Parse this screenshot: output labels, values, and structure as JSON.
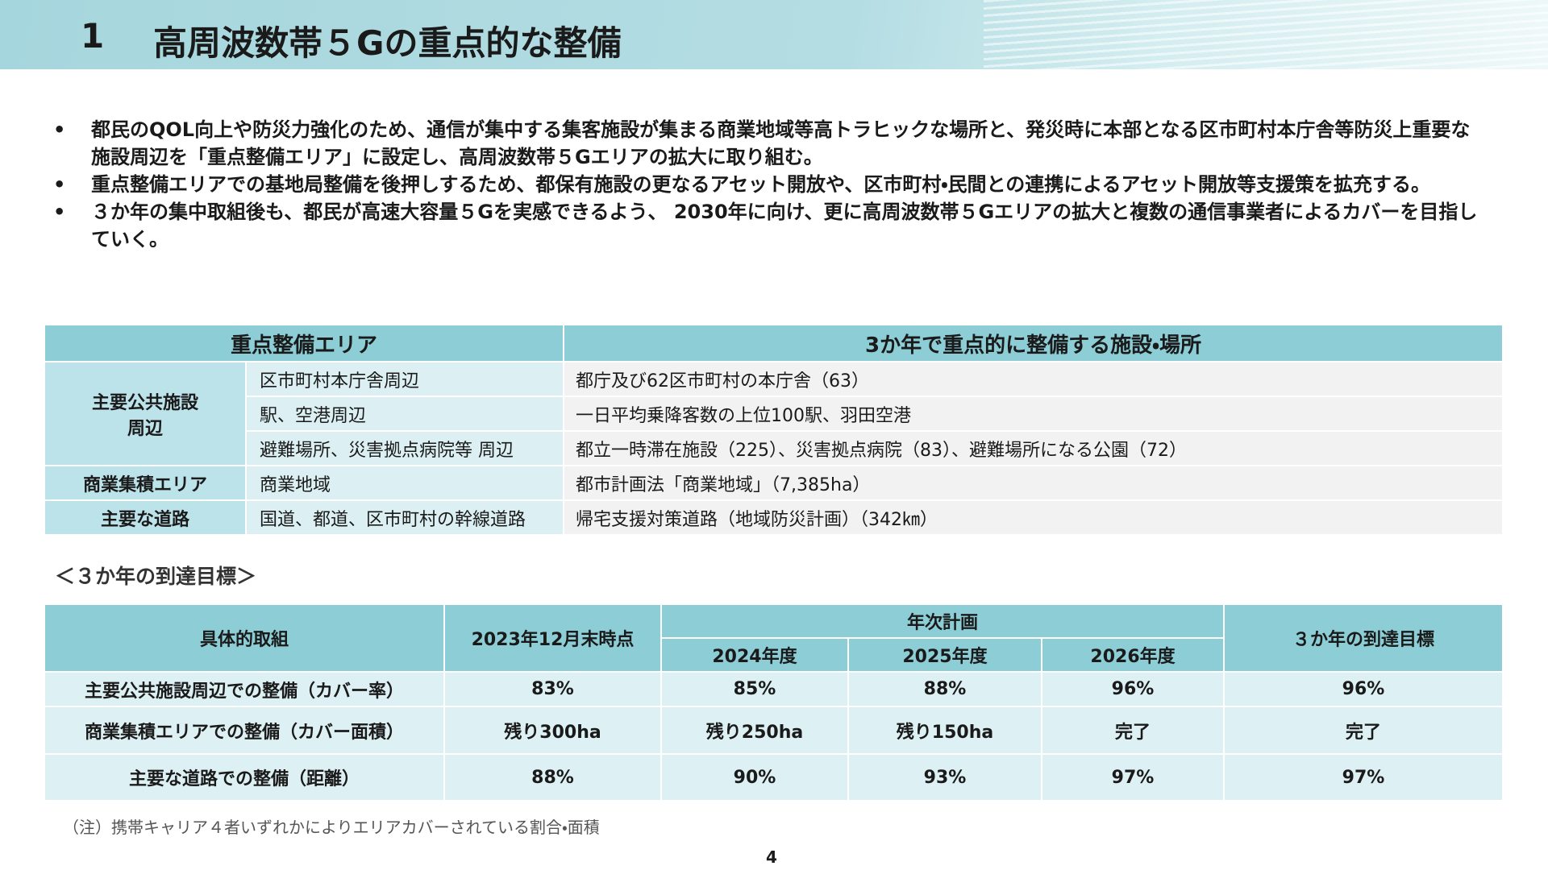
{
  "header": {
    "number": "1",
    "title": "高周波数帯５Gの重点的な整備"
  },
  "bullets": [
    "都民のQOL向上や防災力強化のため、通信が集中する集客施設が集まる商業地域等高トラヒックな場所と、発災時に本部となる区市町村本庁舎等防災上重要な施設周辺を「重点整備エリア」に設定し、高周波数帯５Gエリアの拡大に取り組む。",
    "重点整備エリアでの基地局整備を後押しするため、都保有施設の更なるアセット開放や、区市町村・民間との連携によるアセット開放等支援策を拡充する。",
    "３か年の集中取組後も、都民が高速大容量５Gを実感できるよう、 2030年に向け、更に高周波数帯５Gエリアの拡大と複数の通信事業者によるカバーを目指していく。"
  ],
  "table1": {
    "header": [
      "重点整備エリア",
      "3か年で重点的に整備する施設・場所"
    ],
    "groups": [
      {
        "label": "主要公共施設周辺",
        "items": [
          [
            "区市町村本庁舎周辺",
            "都庁及び62区市町村の本庁舎（63）"
          ],
          [
            "駅、空港周辺",
            "一日平均乗降客数の上位100駅、羽田空港"
          ],
          [
            "避難場所、災害拠点病院等 周辺",
            "都立一時滞在施設（225）、災害拠点病院（83）、避難場所になる公園（72）"
          ]
        ]
      },
      {
        "label": "商業集積エリア",
        "items": [
          [
            "商業地域",
            "都市計画法「商業地域」（7,385ha）"
          ]
        ]
      },
      {
        "label": "主要な道路",
        "items": [
          [
            "国道、都道、区市町村の幹線道路",
            "帰宅支援対策道路（地域防災計画）（342㎞）"
          ]
        ]
      }
    ]
  },
  "subtitle": "＜３か年の到達目標＞",
  "table2": {
    "header": {
      "item": "具体的取組",
      "current": "2023年12月末時点",
      "plan": "年次計画",
      "years": [
        "2024年度",
        "2025年度",
        "2026年度"
      ],
      "goal": "３か年の到達目標"
    },
    "rows": [
      [
        "主要公共施設周辺での整備（カバー率）",
        "83%",
        "85%",
        "88%",
        "96%",
        "96%"
      ],
      [
        "商業集積エリアでの整備（カバー面積）",
        "残り300ha",
        "残り250ha",
        "残り150ha",
        "完了",
        "完了"
      ],
      [
        "主要な道路での整備（距離）",
        "88%",
        "90%",
        "93%",
        "97%",
        "97%"
      ]
    ]
  },
  "note": "（注）携帯キャリア４者いずれかによりエリアカバーされている割合・面積",
  "page_number": "4"
}
